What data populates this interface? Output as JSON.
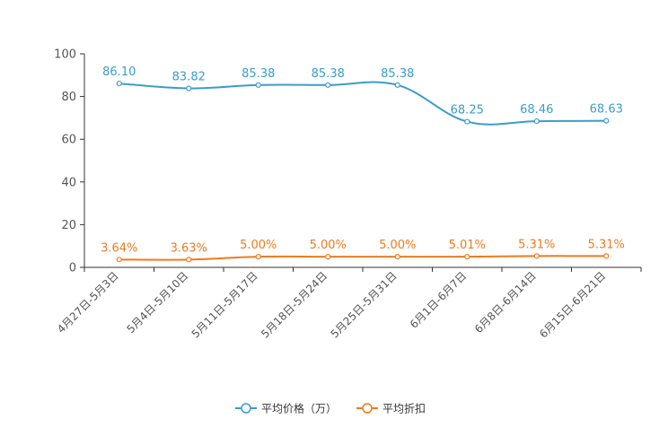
{
  "chart_data": {
    "type": "line",
    "categories": [
      "4月27日-5月3日",
      "5月4日-5月10日",
      "5月11日-5月17日",
      "5月18日-5月24日",
      "5月25日-5月31日",
      "6月1日-6月7日",
      "6月8日-6月14日",
      "6月15日-6月21日"
    ],
    "series": [
      {
        "name": "平均价格（万）",
        "color": "#3a9ccd",
        "values": [
          86.1,
          83.82,
          85.38,
          85.38,
          85.38,
          68.25,
          68.46,
          68.63
        ],
        "labels": [
          "86.10",
          "83.82",
          "85.38",
          "85.38",
          "85.38",
          "68.25",
          "68.46",
          "68.63"
        ]
      },
      {
        "name": "平均折扣",
        "color": "#f07a1e",
        "values": [
          3.64,
          3.63,
          5.0,
          5.0,
          5.0,
          5.01,
          5.31,
          5.31
        ],
        "labels": [
          "3.64%",
          "3.63%",
          "5.00%",
          "5.00%",
          "5.00%",
          "5.01%",
          "5.31%",
          "5.31%"
        ]
      }
    ],
    "yticks": [
      "0",
      "20",
      "40",
      "60",
      "80",
      "100"
    ],
    "ylim": [
      0,
      100
    ],
    "title": "",
    "xlabel": "",
    "ylabel": "",
    "legend_position": "bottom-center"
  }
}
